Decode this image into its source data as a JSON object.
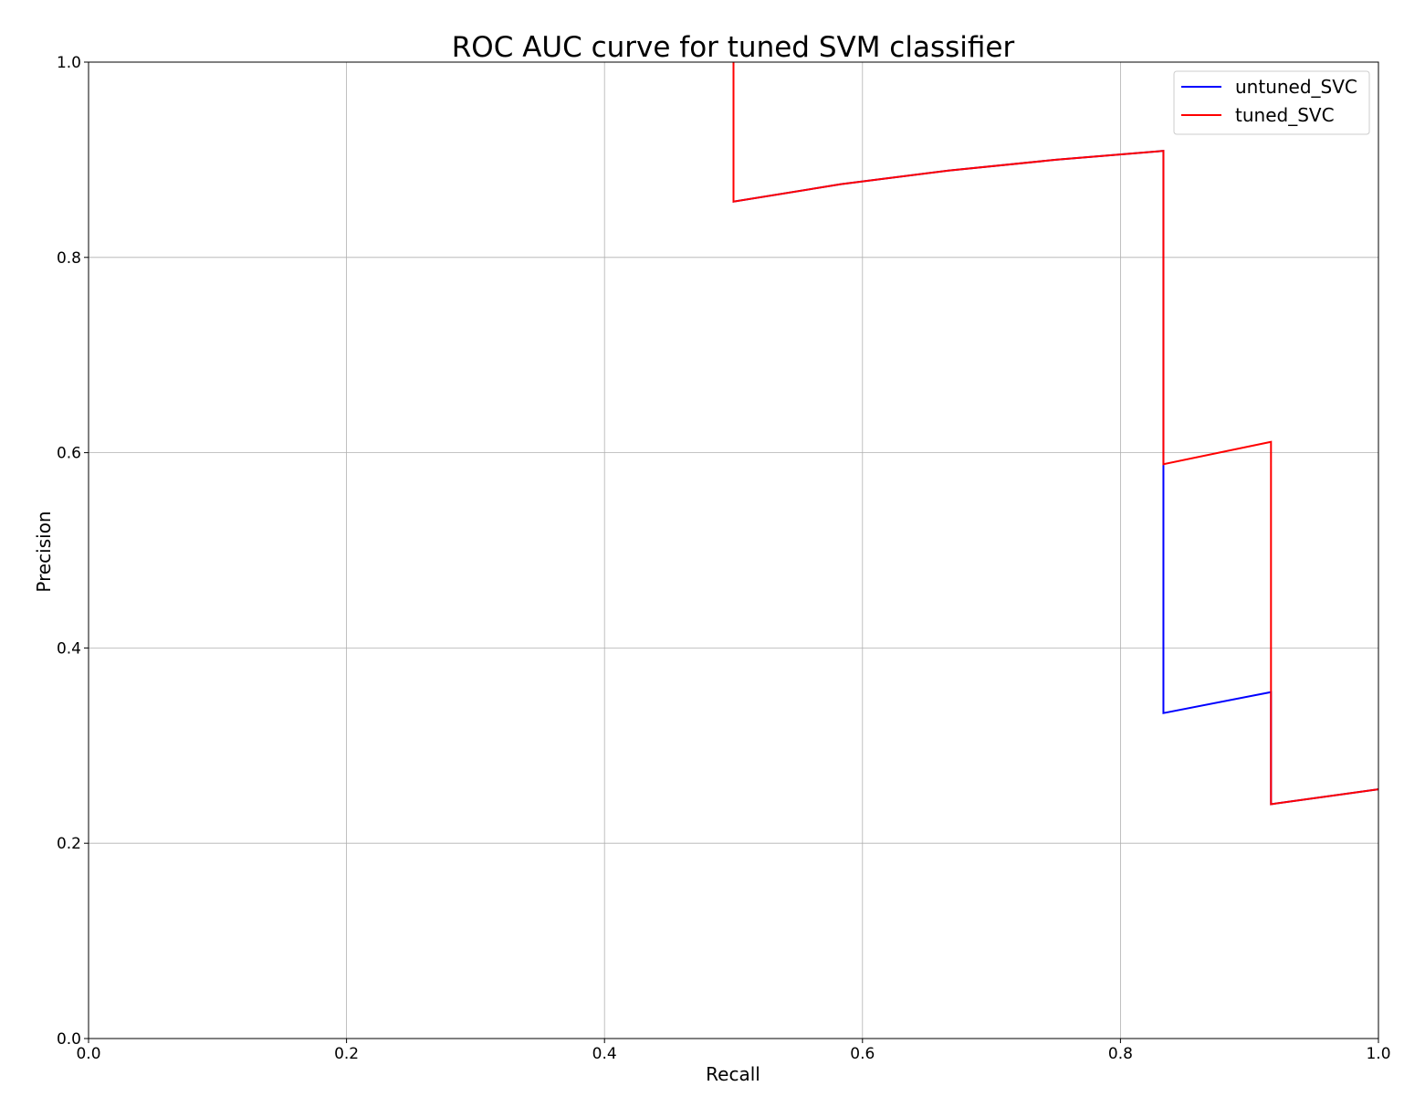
{
  "chart_data": {
    "type": "line",
    "title": "ROC AUC curve for tuned SVM classifier",
    "xlabel": "Recall",
    "ylabel": "Precision",
    "xlim": [
      0.0,
      1.0
    ],
    "ylim": [
      0.0,
      1.0
    ],
    "xticks": [
      "0.0",
      "0.2",
      "0.4",
      "0.6",
      "0.8",
      "1.0"
    ],
    "yticks": [
      "0.0",
      "0.2",
      "0.4",
      "0.6",
      "0.8",
      "1.0"
    ],
    "grid": true,
    "legend_position": "top-right",
    "series": [
      {
        "name": "untuned_SVC",
        "color": "#0000ff",
        "x": [
          0.5,
          0.5,
          0.5833,
          0.6667,
          0.75,
          0.8333,
          0.8333,
          0.8333,
          0.9167,
          0.9167,
          0.9167,
          1.0
        ],
        "y": [
          1.0,
          0.8571,
          0.875,
          0.8889,
          0.9,
          0.9091,
          0.5882,
          0.3333,
          0.3548,
          0.3548,
          0.24,
          0.2553
        ]
      },
      {
        "name": "tuned_SVC",
        "color": "#ff0000",
        "x": [
          0.5,
          0.5,
          0.5833,
          0.6667,
          0.75,
          0.8333,
          0.8333,
          0.9167,
          0.9167,
          1.0
        ],
        "y": [
          1.0,
          0.8571,
          0.875,
          0.8889,
          0.9,
          0.9091,
          0.5882,
          0.6111,
          0.24,
          0.2553
        ]
      }
    ]
  }
}
